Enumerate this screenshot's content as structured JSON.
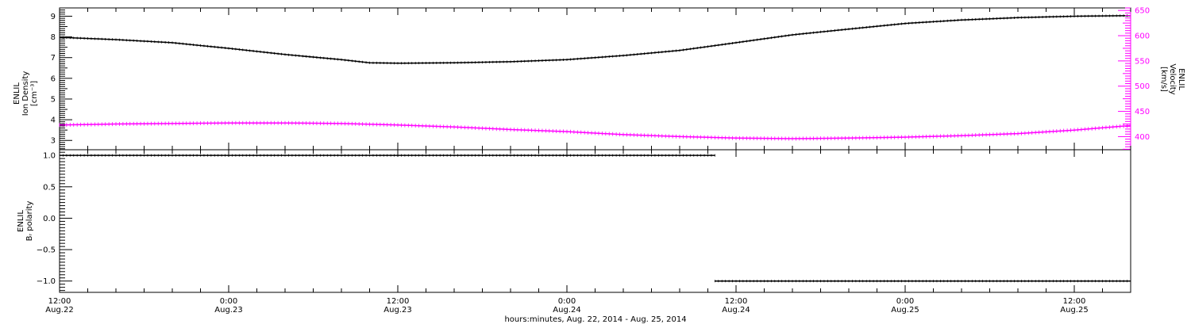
{
  "chart_data": [
    {
      "type": "line",
      "panel": "top",
      "xlabel": "hours:minutes, Aug. 22, 2014 - Aug. 25, 2014",
      "x_ticks": [
        {
          "x": 0,
          "time": "12:00",
          "date": "Aug.22"
        },
        {
          "x": 12,
          "time": "0:00",
          "date": "Aug.23"
        },
        {
          "x": 24,
          "time": "12:00",
          "date": "Aug.23"
        },
        {
          "x": 36,
          "time": "0:00",
          "date": "Aug.24"
        },
        {
          "x": 48,
          "time": "12:00",
          "date": "Aug.24"
        },
        {
          "x": 60,
          "time": "0:00",
          "date": "Aug.25"
        },
        {
          "x": 72,
          "time": "12:00",
          "date": "Aug.25"
        }
      ],
      "xlim": [
        0,
        76
      ],
      "left_axis": {
        "label_lines": [
          "ENLIL",
          "Ion Density",
          "[cm⁻³]"
        ],
        "ylim": [
          2.55,
          9.4
        ],
        "ticks": [
          3,
          4,
          5,
          6,
          7,
          8,
          9
        ]
      },
      "right_axis": {
        "label_lines": [
          "ENLIL",
          "Velocity",
          "[km/s]"
        ],
        "ylim": [
          374,
          655
        ],
        "ticks": [
          400,
          450,
          500,
          550,
          600,
          650
        ],
        "color": "#ff00ff"
      },
      "series": [
        {
          "axis": "left",
          "color": "#000000",
          "x": [
            0,
            4,
            8,
            12,
            16,
            20,
            22,
            24,
            28,
            32,
            36,
            40,
            44,
            48,
            52,
            56,
            60,
            64,
            68,
            72,
            76
          ],
          "y": [
            7.98,
            7.87,
            7.72,
            7.45,
            7.15,
            6.9,
            6.75,
            6.73,
            6.75,
            6.8,
            6.9,
            7.1,
            7.35,
            7.72,
            8.1,
            8.38,
            8.65,
            8.82,
            8.93,
            9.0,
            9.03
          ]
        },
        {
          "axis": "right",
          "color": "#ff00ff",
          "x": [
            0,
            4,
            8,
            12,
            16,
            20,
            24,
            28,
            32,
            36,
            40,
            44,
            48,
            52,
            56,
            60,
            64,
            68,
            72,
            76
          ],
          "y": [
            423,
            425,
            426,
            427,
            427,
            426,
            423,
            419,
            414,
            410,
            404,
            400,
            397,
            396,
            397,
            399,
            402,
            406,
            413,
            422
          ]
        }
      ]
    },
    {
      "type": "line",
      "panel": "bottom",
      "left_axis": {
        "label_lines": [
          "ENLIL",
          "Bᵣ polarity"
        ],
        "ylim": [
          -1.18,
          1.09
        ],
        "ticks": [
          1.0,
          0.5,
          0.0,
          -0.5,
          -1.0
        ],
        "tick_labels": [
          "1.0",
          "0.5",
          "0.0",
          "−0.5",
          "−1.0"
        ]
      },
      "series": [
        {
          "color": "#000000",
          "segments": [
            {
              "x": [
                0,
                46.5
              ],
              "y": [
                1,
                1
              ]
            },
            {
              "x": [
                46.5,
                76
              ],
              "y": [
                -1,
                -1
              ]
            }
          ]
        }
      ]
    }
  ]
}
